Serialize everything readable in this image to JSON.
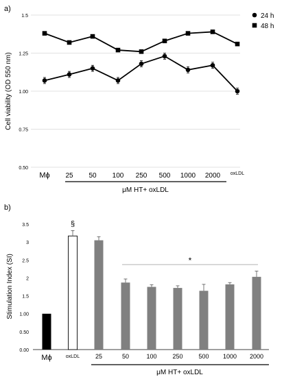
{
  "chart_data": [
    {
      "panel": "a)",
      "type": "line",
      "categories": [
        "Mϕ",
        "25",
        "50",
        "100",
        "250",
        "500",
        "1000",
        "2000",
        "oxLDL"
      ],
      "ylabel": "Cell viability (OD 550 nm)",
      "xlabel": "μM HT+ oxLDL",
      "ylim": [
        0.5,
        1.5
      ],
      "yticks": [
        "0.50",
        "0.75",
        "1.00",
        "1.25",
        "1.5"
      ],
      "legend_position": "top-right",
      "series": [
        {
          "name": "24 h",
          "marker": "circle",
          "color": "#000000",
          "values": [
            1.07,
            1.11,
            1.15,
            1.07,
            1.18,
            1.23,
            1.14,
            1.17,
            1.0
          ],
          "errors": [
            0.02,
            0.02,
            0.02,
            0.02,
            0.02,
            0.02,
            0.02,
            0.02,
            0.02
          ]
        },
        {
          "name": "48 h",
          "marker": "square",
          "color": "#000000",
          "values": [
            1.38,
            1.32,
            1.36,
            1.27,
            1.26,
            1.33,
            1.38,
            1.39,
            1.31
          ],
          "errors": [
            0.0,
            0.0,
            0.0,
            0.0,
            0.0,
            0.0,
            0.0,
            0.0,
            0.0
          ]
        }
      ]
    },
    {
      "panel": "b)",
      "type": "bar",
      "categories": [
        "Mϕ",
        "oxLDL",
        "25",
        "50",
        "100",
        "250",
        "500",
        "1000",
        "2000"
      ],
      "values": [
        1.0,
        3.17,
        3.05,
        1.87,
        1.75,
        1.72,
        1.64,
        1.82,
        2.03
      ],
      "errors": [
        0.0,
        0.15,
        0.1,
        0.1,
        0.06,
        0.06,
        0.18,
        0.05,
        0.16
      ],
      "bar_colors": [
        "#000000",
        "#ffffff",
        "#808080",
        "#808080",
        "#808080",
        "#808080",
        "#808080",
        "#808080",
        "#808080"
      ],
      "ylabel": "Stimulation Index (SI)",
      "xlabel": "μM HT+ oxLDL",
      "ylim": [
        0,
        3.5
      ],
      "yticks": [
        "0.00",
        "0.50",
        "1.00",
        "1.5",
        "2",
        "2.5",
        "3",
        "3.5"
      ],
      "annotations": {
        "oxLDL_mark": "§",
        "significance_mark": "*"
      }
    }
  ]
}
